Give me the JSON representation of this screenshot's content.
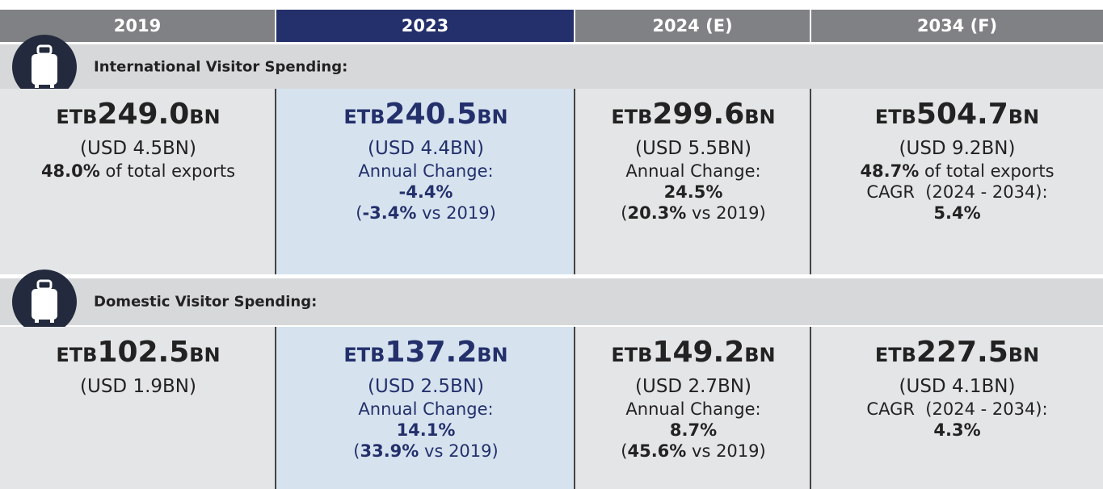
{
  "header": {
    "columns": [
      "2019",
      "2023",
      "2024 (E)",
      "2034 (F)"
    ]
  },
  "sections": [
    {
      "title": "International Visitor Spending:",
      "cells": [
        {
          "amount": {
            "prefix": "ETB",
            "value": "249.0",
            "suffix": "BN"
          },
          "lines": [
            [
              {
                "text": "(USD 4.5BN)",
                "bold": false
              }
            ],
            [
              {
                "text": "48.0%",
                "bold": true
              },
              {
                "text": " of total exports",
                "bold": false
              }
            ]
          ]
        },
        {
          "amount": {
            "prefix": "ETB",
            "value": "240.5",
            "suffix": "BN"
          },
          "lines": [
            [
              {
                "text": "(USD 4.4BN)",
                "bold": false
              }
            ],
            [
              {
                "text": "Annual Change:",
                "bold": false
              }
            ],
            [
              {
                "text": "-4.4%",
                "bold": true
              }
            ],
            [
              {
                "text": "(",
                "bold": false
              },
              {
                "text": "-3.4%",
                "bold": true
              },
              {
                "text": " vs 2019)",
                "bold": false
              }
            ]
          ]
        },
        {
          "amount": {
            "prefix": "ETB",
            "value": "299.6",
            "suffix": "BN"
          },
          "lines": [
            [
              {
                "text": "(USD 5.5BN)",
                "bold": false
              }
            ],
            [
              {
                "text": "Annual Change:",
                "bold": false
              }
            ],
            [
              {
                "text": "24.5%",
                "bold": true
              }
            ],
            [
              {
                "text": "(",
                "bold": false
              },
              {
                "text": "20.3%",
                "bold": true
              },
              {
                "text": " vs 2019)",
                "bold": false
              }
            ]
          ]
        },
        {
          "amount": {
            "prefix": "ETB",
            "value": "504.7",
            "suffix": "BN"
          },
          "lines": [
            [
              {
                "text": "(USD 9.2BN)",
                "bold": false
              }
            ],
            [
              {
                "text": "48.7%",
                "bold": true
              },
              {
                "text": " of total exports",
                "bold": false
              }
            ],
            [
              {
                "text": "CAGR  (2024 - 2034):",
                "bold": false
              }
            ],
            [
              {
                "text": "5.4%",
                "bold": true
              }
            ]
          ]
        }
      ]
    },
    {
      "title": "Domestic Visitor Spending:",
      "cells": [
        {
          "amount": {
            "prefix": "ETB",
            "value": "102.5",
            "suffix": "BN"
          },
          "lines": [
            [
              {
                "text": "(USD 1.9BN)",
                "bold": false
              }
            ]
          ]
        },
        {
          "amount": {
            "prefix": "ETB",
            "value": "137.2",
            "suffix": "BN"
          },
          "lines": [
            [
              {
                "text": "(USD 2.5BN)",
                "bold": false
              }
            ],
            [
              {
                "text": "Annual Change:",
                "bold": false
              }
            ],
            [
              {
                "text": "14.1%",
                "bold": true
              }
            ],
            [
              {
                "text": "(",
                "bold": false
              },
              {
                "text": "33.9%",
                "bold": true
              },
              {
                "text": " vs 2019)",
                "bold": false
              }
            ]
          ]
        },
        {
          "amount": {
            "prefix": "ETB",
            "value": "149.2",
            "suffix": "BN"
          },
          "lines": [
            [
              {
                "text": "(USD 2.7BN)",
                "bold": false
              }
            ],
            [
              {
                "text": "Annual Change:",
                "bold": false
              }
            ],
            [
              {
                "text": "8.7%",
                "bold": true
              }
            ],
            [
              {
                "text": "(",
                "bold": false
              },
              {
                "text": "45.6%",
                "bold": true
              },
              {
                "text": " vs 2019)",
                "bold": false
              }
            ]
          ]
        },
        {
          "amount": {
            "prefix": "ETB",
            "value": "227.5",
            "suffix": "BN"
          },
          "lines": [
            [
              {
                "text": "(USD 4.1BN)",
                "bold": false
              }
            ],
            [
              {
                "text": "CAGR  (2024 - 2034):",
                "bold": false
              }
            ],
            [
              {
                "text": "4.3%",
                "bold": true
              }
            ]
          ]
        }
      ]
    }
  ]
}
